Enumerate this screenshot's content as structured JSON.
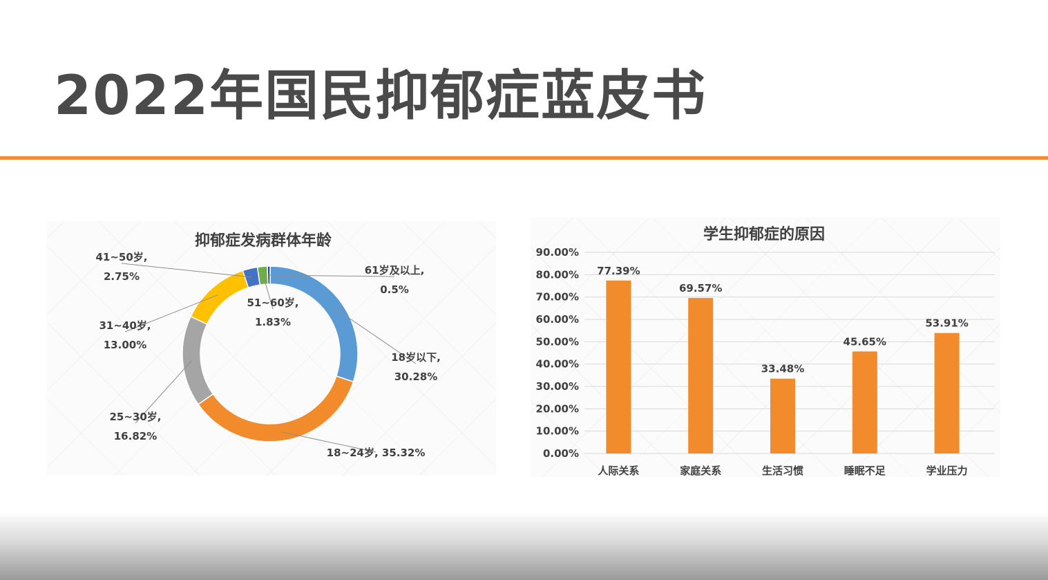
{
  "title": "2022年国民抑郁症蓝皮书",
  "colors": {
    "accent": "#f28b2c",
    "title_text": "#4a4a4a",
    "bar": "#f28b2c"
  },
  "chart_data": [
    {
      "type": "pie",
      "title": "抑郁症发病群体年龄",
      "donut": true,
      "slices": [
        {
          "label": "18岁以下",
          "value": 30.28,
          "label_text": "18岁以下,",
          "value_text": "30.28%",
          "color": "#5b9bd5"
        },
        {
          "label": "18~24岁",
          "value": 35.32,
          "label_text": "18~24岁, 35.32%",
          "value_text": "",
          "color": "#f28b2c"
        },
        {
          "label": "25~30岁",
          "value": 16.82,
          "label_text": "25~30岁,",
          "value_text": "16.82%",
          "color": "#a5a5a5"
        },
        {
          "label": "31~40岁",
          "value": 13.0,
          "label_text": "31~40岁,",
          "value_text": "13.00%",
          "color": "#ffc000"
        },
        {
          "label": "41~50岁",
          "value": 2.75,
          "label_text": "41~50岁,",
          "value_text": "2.75%",
          "color": "#4472c4"
        },
        {
          "label": "51~60岁",
          "value": 1.83,
          "label_text": "51~60岁,",
          "value_text": "1.83%",
          "color": "#70ad47"
        },
        {
          "label": "61岁及以上",
          "value": 0.5,
          "label_text": "61岁及以上,",
          "value_text": "0.5%",
          "color": "#264478"
        }
      ]
    },
    {
      "type": "bar",
      "title": "学生抑郁症的原因",
      "categories": [
        "人际关系",
        "家庭关系",
        "生活习惯",
        "睡眠不足",
        "学业压力"
      ],
      "values": [
        77.39,
        69.57,
        33.48,
        45.65,
        53.91
      ],
      "value_labels": [
        "77.39%",
        "69.57%",
        "33.48%",
        "45.65%",
        "53.91%"
      ],
      "ylim": [
        0,
        90
      ],
      "y_ticks": [
        "0.00%",
        "10.00%",
        "20.00%",
        "30.00%",
        "40.00%",
        "50.00%",
        "60.00%",
        "70.00%",
        "80.00%",
        "90.00%"
      ],
      "grid": true,
      "color": "#f28b2c"
    }
  ]
}
